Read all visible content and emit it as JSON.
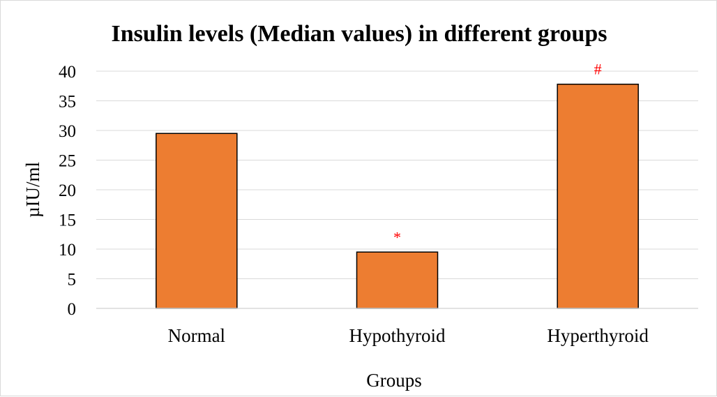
{
  "chart_data": {
    "type": "bar",
    "title": "Insulin levels (Median values) in different groups",
    "xlabel": "Groups",
    "ylabel": "µIU/ml",
    "categories": [
      "Normal",
      "Hypothyroid",
      "Hyperthyroid"
    ],
    "values": [
      29.5,
      9.5,
      37.8
    ],
    "ylim": [
      0,
      40
    ],
    "yticks": [
      0,
      5,
      10,
      15,
      20,
      25,
      30,
      35,
      40
    ],
    "annotations": [
      "",
      "*",
      "#"
    ],
    "grid": true,
    "legend": "none",
    "colors": {
      "bar_fill": "#ed7d31",
      "bar_stroke": "#000000",
      "grid": "#d9d9d9",
      "annotation": "#ff0000"
    }
  }
}
